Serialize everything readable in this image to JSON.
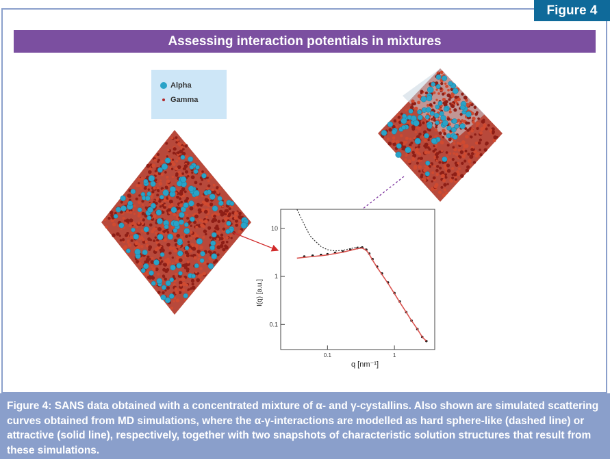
{
  "figure_tab": "Figure 4",
  "banner_title": "Assessing interaction potentials in mixtures",
  "legend": {
    "alpha_label": "Alpha",
    "gamma_label": "Gamma",
    "alpha_color": "#2aa3c8",
    "gamma_color": "#b0282a"
  },
  "caption": "Figure 4: SANS data obtained with a concentrated mixture of α- and γ-cystallins. Also shown are simulated scattering curves obtained from MD simulations, where the α-γ-interactions are modelled as hard sphere-like (dashed line) or attractive (solid line), respectively, together with two snapshots of characteristic solution structures that result from these simulations.",
  "chart_data": {
    "type": "line",
    "xlabel": "q [nm⁻¹]",
    "ylabel": "I(q) [a.u.]",
    "xscale": "log",
    "yscale": "log",
    "xlim": [
      0.02,
      4
    ],
    "ylim": [
      0.03,
      25
    ],
    "x_tick_labels": [
      "0.1",
      "1"
    ],
    "y_tick_labels": [
      "10",
      "1",
      "0.1"
    ],
    "series": [
      {
        "style": "scatter",
        "color": "#1a1a1a",
        "x": [
          0.045,
          0.06,
          0.08,
          0.1,
          0.13,
          0.17,
          0.22,
          0.28,
          0.33,
          0.38,
          0.42,
          0.47,
          0.55,
          0.65,
          0.8,
          1.0,
          1.2,
          1.5,
          1.8,
          2.2,
          2.6,
          3.0
        ],
        "y": [
          2.6,
          2.7,
          2.8,
          2.9,
          3.1,
          3.3,
          3.6,
          3.9,
          4.0,
          3.6,
          3.0,
          2.3,
          1.6,
          1.15,
          0.75,
          0.45,
          0.3,
          0.18,
          0.12,
          0.08,
          0.055,
          0.045
        ]
      },
      {
        "style": "dashed",
        "color": "#333333",
        "x": [
          0.035,
          0.045,
          0.055,
          0.065,
          0.08,
          0.1,
          0.13,
          0.17,
          0.22,
          0.28,
          0.33,
          0.38
        ],
        "y": [
          25,
          12,
          7,
          5.5,
          4.2,
          3.6,
          3.4,
          3.5,
          3.8,
          4.1,
          4.0,
          3.6
        ]
      },
      {
        "style": "solid",
        "color": "#d9534f",
        "x": [
          0.035,
          0.045,
          0.06,
          0.08,
          0.1,
          0.13,
          0.17,
          0.22,
          0.28,
          0.33,
          0.38,
          0.42,
          0.47,
          0.55,
          0.65,
          0.8,
          1.0,
          1.2,
          1.5,
          1.8,
          2.2,
          2.6,
          3.0
        ],
        "y": [
          2.4,
          2.5,
          2.6,
          2.7,
          2.8,
          3.0,
          3.2,
          3.5,
          3.8,
          3.9,
          3.5,
          2.9,
          2.2,
          1.55,
          1.1,
          0.72,
          0.44,
          0.29,
          0.18,
          0.12,
          0.08,
          0.055,
          0.045
        ]
      }
    ]
  }
}
